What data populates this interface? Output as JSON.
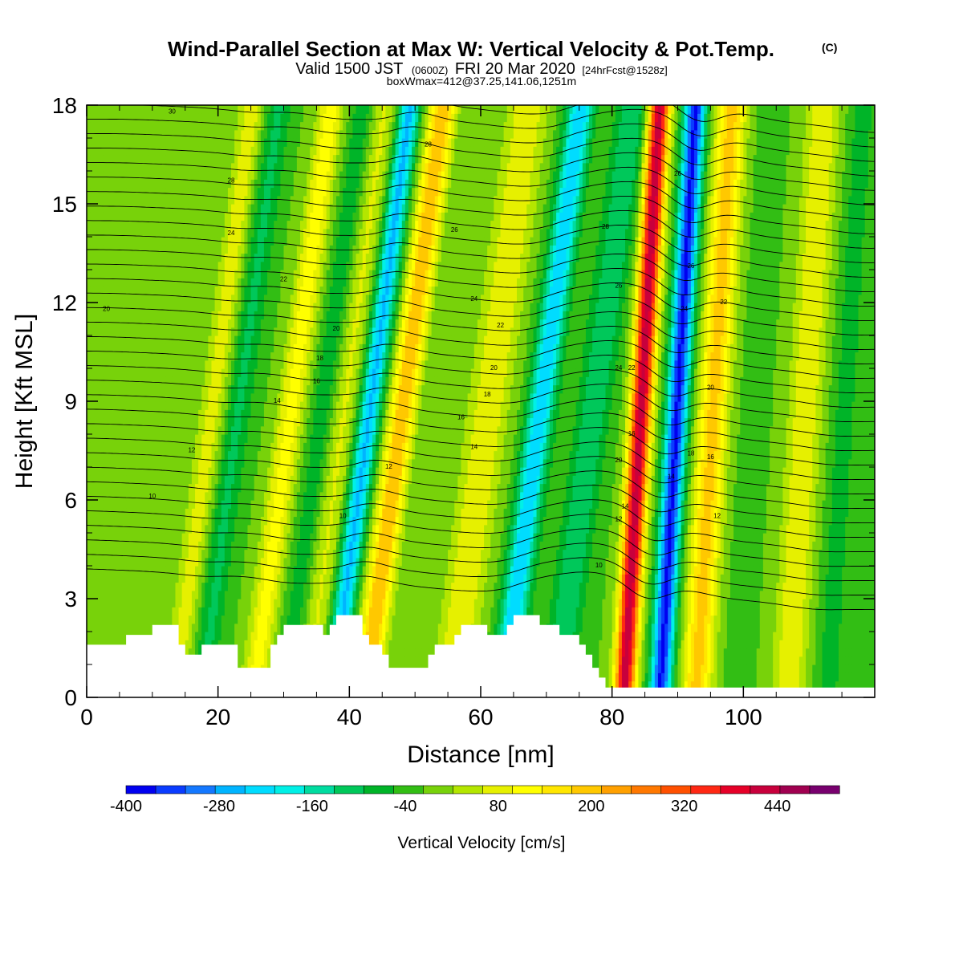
{
  "title": {
    "main": "Wind-Parallel Section at Max W: Vertical Velocity & Pot.Temp.",
    "mark": "(C)",
    "valid_a": "Valid 1500 JST",
    "valid_b": "(0600Z)",
    "valid_c": "FRI 20 Mar 2020",
    "valid_d": "[24hrFcst@1528z]",
    "info": "boxWmax=412@37.25,141.06,1251m"
  },
  "chart_data": {
    "type": "heatmap",
    "xlabel": "Distance [nm]",
    "ylabel": "Height [Kft MSL]",
    "xlim": [
      0,
      120
    ],
    "ylim": [
      0,
      18
    ],
    "x_ticks": [
      0,
      20,
      40,
      60,
      80,
      100
    ],
    "y_ticks": [
      0,
      3,
      6,
      9,
      12,
      15,
      18
    ],
    "colorbar": {
      "title": "Vertical Velocity [cm/s]",
      "min": -400,
      "max": 520,
      "step": 40,
      "labels": [
        -400,
        -280,
        -160,
        -40,
        80,
        200,
        320,
        440
      ],
      "colors": [
        "#0000f0",
        "#0a3cff",
        "#1478ff",
        "#00b4ff",
        "#00dcff",
        "#00f0e6",
        "#00dca0",
        "#00c85a",
        "#00b428",
        "#32be14",
        "#78d20a",
        "#b4e600",
        "#e6f000",
        "#ffff00",
        "#ffe600",
        "#ffc800",
        "#ffa000",
        "#ff7800",
        "#ff5000",
        "#ff2814",
        "#e60028",
        "#c8003c",
        "#a00050",
        "#78006e"
      ]
    },
    "isentrope_labels": [
      10,
      12,
      14,
      16,
      18,
      20,
      22,
      24,
      26,
      28,
      30
    ],
    "terrain_kft": [
      [
        0,
        1.6
      ],
      [
        5,
        1.6
      ],
      [
        6,
        1.9
      ],
      [
        9,
        1.9
      ],
      [
        10,
        2.2
      ],
      [
        13,
        2.2
      ],
      [
        14,
        1.6
      ],
      [
        15,
        1.3
      ],
      [
        17,
        1.3
      ],
      [
        17.5,
        1.6
      ],
      [
        22,
        1.6
      ],
      [
        23,
        0.9
      ],
      [
        27,
        0.9
      ],
      [
        28,
        1.6
      ],
      [
        29,
        1.9
      ],
      [
        30,
        2.2
      ],
      [
        35,
        2.2
      ],
      [
        36,
        1.9
      ],
      [
        37,
        2.2
      ],
      [
        38,
        2.5
      ],
      [
        41,
        2.5
      ],
      [
        42,
        1.9
      ],
      [
        43,
        1.6
      ],
      [
        45,
        1.3
      ],
      [
        46,
        0.9
      ],
      [
        51,
        0.9
      ],
      [
        52,
        1.3
      ],
      [
        53,
        1.6
      ],
      [
        55,
        1.6
      ],
      [
        56,
        1.9
      ],
      [
        57,
        2.2
      ],
      [
        60,
        2.2
      ],
      [
        61,
        1.9
      ],
      [
        63,
        1.9
      ],
      [
        64,
        2.2
      ],
      [
        65,
        2.5
      ],
      [
        68,
        2.5
      ],
      [
        69,
        2.2
      ],
      [
        72,
        1.9
      ],
      [
        74,
        1.9
      ],
      [
        75,
        1.6
      ],
      [
        76,
        1.3
      ],
      [
        77,
        0.9
      ],
      [
        78,
        0.6
      ],
      [
        79,
        0.3
      ],
      [
        80,
        0.3
      ]
    ],
    "field_model": {
      "slant_kft_per_nm": 1.2,
      "ground_offset_after_80nm_kft": 0.3,
      "waves": [
        {
          "x0": 3,
          "w": 2.0,
          "amp": 20
        },
        {
          "x0": 10,
          "w": 1.5,
          "amp": 10
        },
        {
          "x0": 16,
          "w": 2.0,
          "amp": 100
        },
        {
          "x0": 20,
          "w": 2.0,
          "amp": -90
        },
        {
          "x0": 28,
          "w": 2.0,
          "amp": 140
        },
        {
          "x0": 33,
          "w": 2.0,
          "amp": -70
        },
        {
          "x0": 36,
          "w": 2.0,
          "amp": 90
        },
        {
          "x0": 40,
          "w": 1.6,
          "amp": -250
        },
        {
          "x0": 45,
          "w": 2.0,
          "amp": 240
        },
        {
          "x0": 50,
          "w": 2.0,
          "amp": 0
        },
        {
          "x0": 58,
          "w": 3.0,
          "amp": 120
        },
        {
          "x0": 66,
          "w": 2.0,
          "amp": -240
        },
        {
          "x0": 74,
          "w": 2.5,
          "amp": -120
        },
        {
          "x0": 83,
          "w": 1.6,
          "amp": 470
        },
        {
          "x0": 88.5,
          "w": 1.6,
          "amp": -370
        },
        {
          "x0": 94,
          "w": 2.2,
          "amp": 220
        },
        {
          "x0": 100,
          "w": 2.0,
          "amp": -20
        },
        {
          "x0": 108,
          "w": 2.5,
          "amp": 120
        },
        {
          "x0": 114,
          "w": 2.0,
          "amp": -60
        }
      ]
    }
  }
}
